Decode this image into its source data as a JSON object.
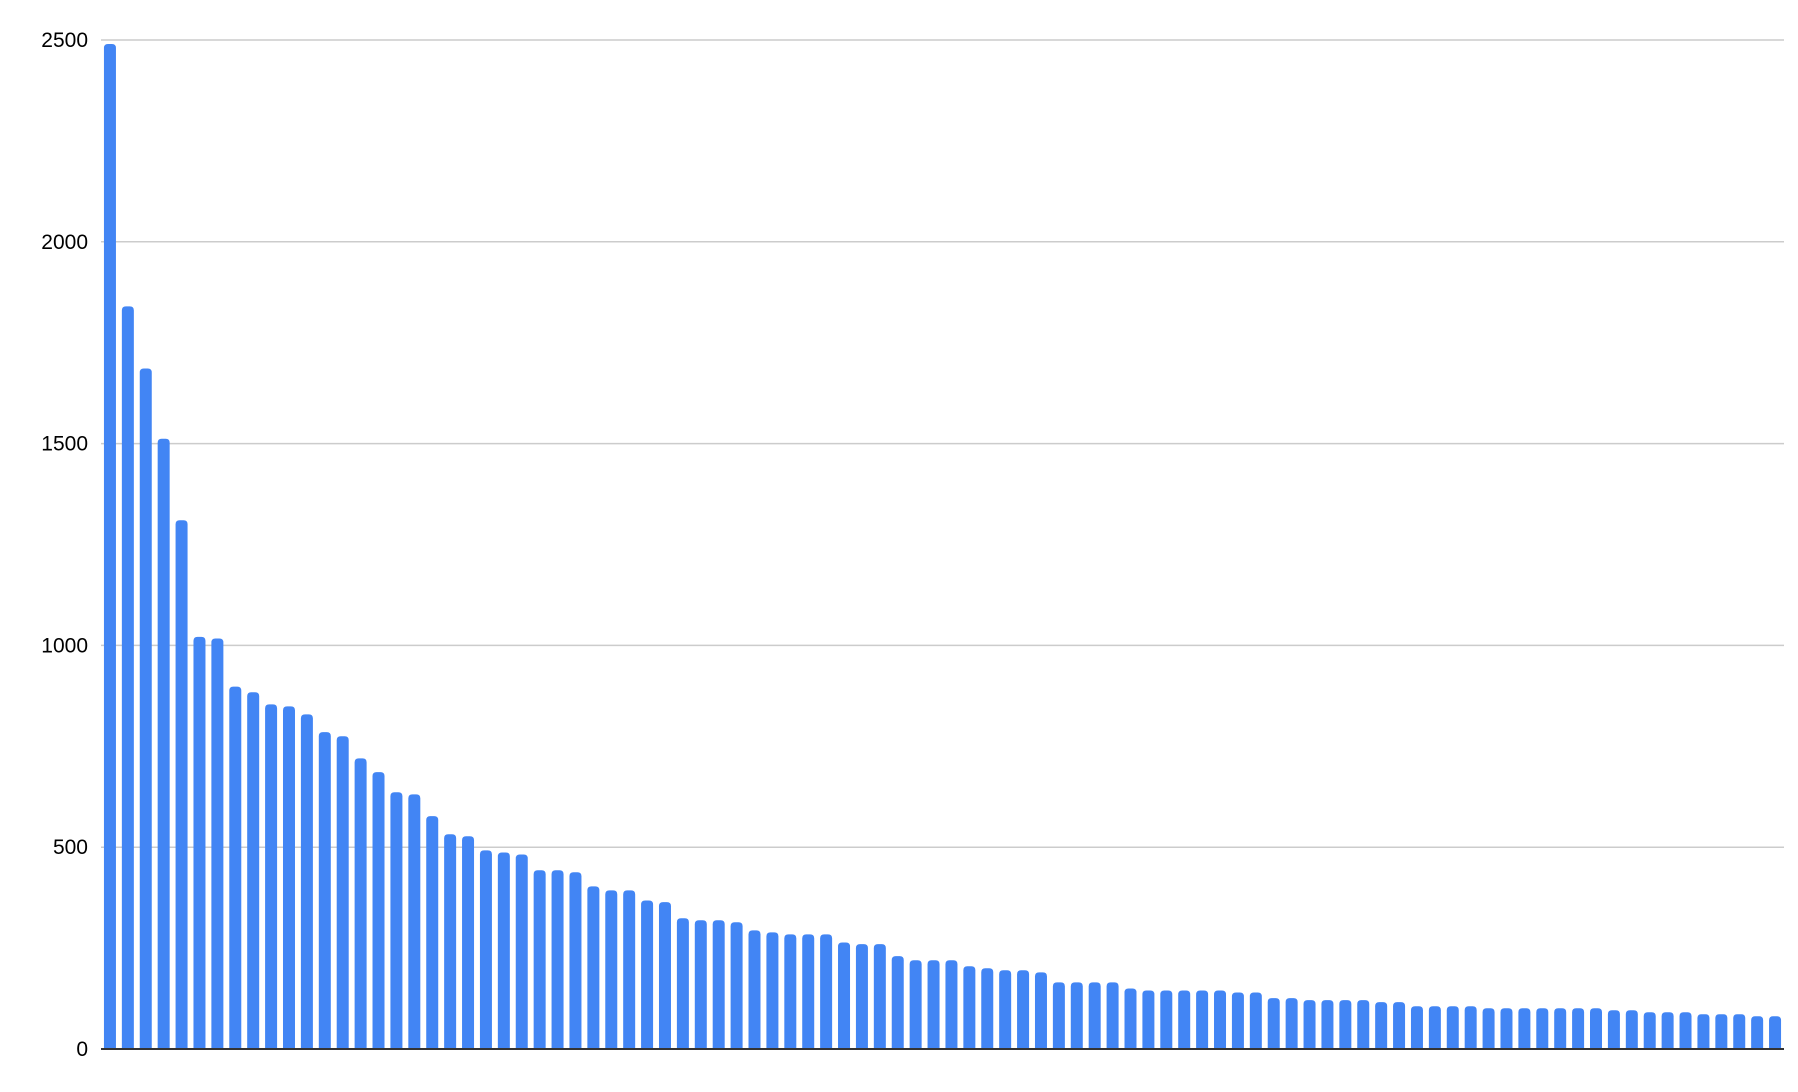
{
  "chart_data": {
    "type": "bar",
    "title": "",
    "xlabel": "",
    "ylabel": "",
    "ylim": [
      0,
      2500
    ],
    "y_ticks": [
      "0",
      "500",
      "1000",
      "1500",
      "2000",
      "2500"
    ],
    "grid": true,
    "legend": "none",
    "bar_color": "#4285f4",
    "gridline_color": "#cccccc",
    "axis_color": "#333333",
    "values": [
      2490,
      1840,
      1686,
      1512,
      1310,
      1021,
      1017,
      898,
      884,
      854,
      849,
      829,
      785,
      775,
      720,
      686,
      636,
      631,
      577,
      532,
      527,
      492,
      487,
      482,
      443,
      443,
      438,
      403,
      393,
      393,
      368,
      364,
      324,
      319,
      319,
      314,
      294,
      289,
      284,
      284,
      284,
      264,
      260,
      260,
      230,
      220,
      220,
      220,
      205,
      200,
      195,
      195,
      190,
      165,
      165,
      165,
      165,
      150,
      145,
      145,
      145,
      145,
      145,
      140,
      140,
      126,
      126,
      121,
      121,
      121,
      121,
      116,
      116,
      106,
      106,
      106,
      106,
      101,
      101,
      101,
      101,
      101,
      101,
      101,
      96,
      96,
      91,
      91,
      91,
      86,
      86,
      86,
      81,
      81
    ]
  }
}
